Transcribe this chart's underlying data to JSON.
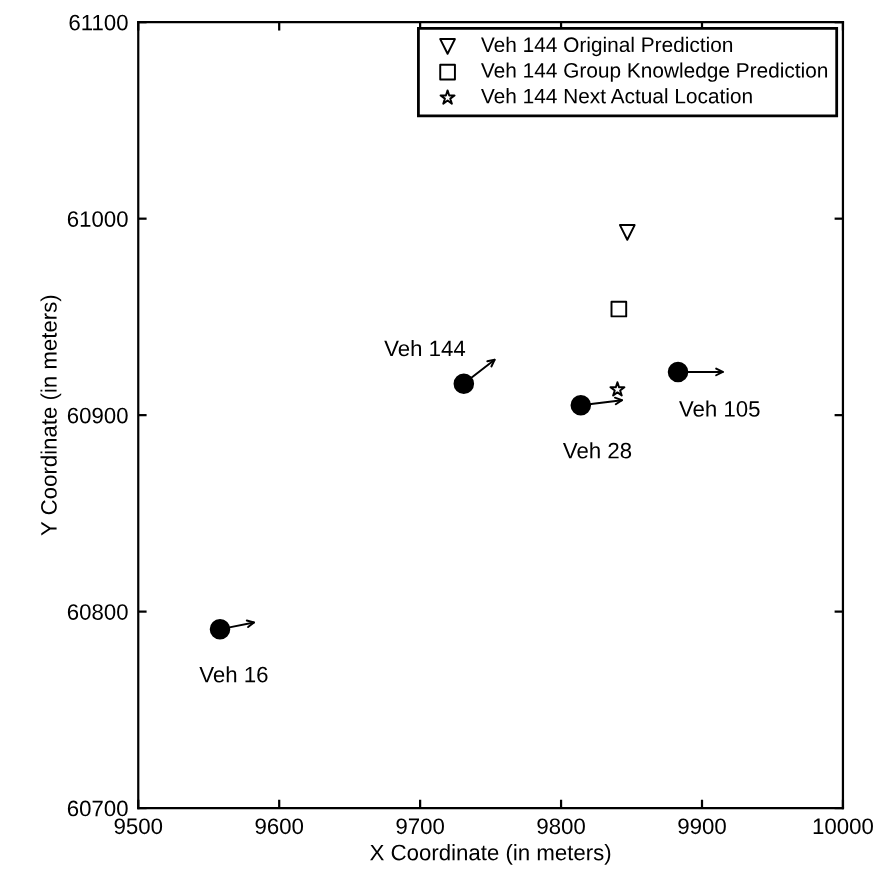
{
  "chart_data": {
    "type": "scatter",
    "xlabel": "X Coordinate (in meters)",
    "ylabel": "Y Coordinate (in meters)",
    "xlim": [
      9500,
      10000
    ],
    "xticks": [
      9500,
      9600,
      9700,
      9800,
      9900,
      10000
    ],
    "ylim": [
      60700,
      61100
    ],
    "yticks": [
      60700,
      60800,
      60900,
      61000,
      61100
    ],
    "grid": false,
    "legend": "top right",
    "series": [
      {
        "name": "Veh 144 Original Prediction",
        "color": "#000000",
        "marker": "triangle",
        "x": [
          9847
        ],
        "values": [
          60993
        ]
      },
      {
        "name": "Veh 144 Group Knowledge Prediction",
        "color": "#000000",
        "marker": "square",
        "x": [
          9841
        ],
        "values": [
          60954
        ]
      },
      {
        "name": "Veh 144 Next Actual Location",
        "color": "#000000",
        "marker": "star",
        "x": [
          9840
        ],
        "values": [
          60913
        ]
      },
      {
        "color": "#000000",
        "marker": "circle",
        "x": [
          9558,
          9731,
          9814,
          9883
        ],
        "values": [
          60791,
          60916,
          60905,
          60922
        ]
      }
    ],
    "annotations": [
      "Veh 16",
      "Veh 144",
      "Veh 28",
      "Veh 105"
    ]
  }
}
